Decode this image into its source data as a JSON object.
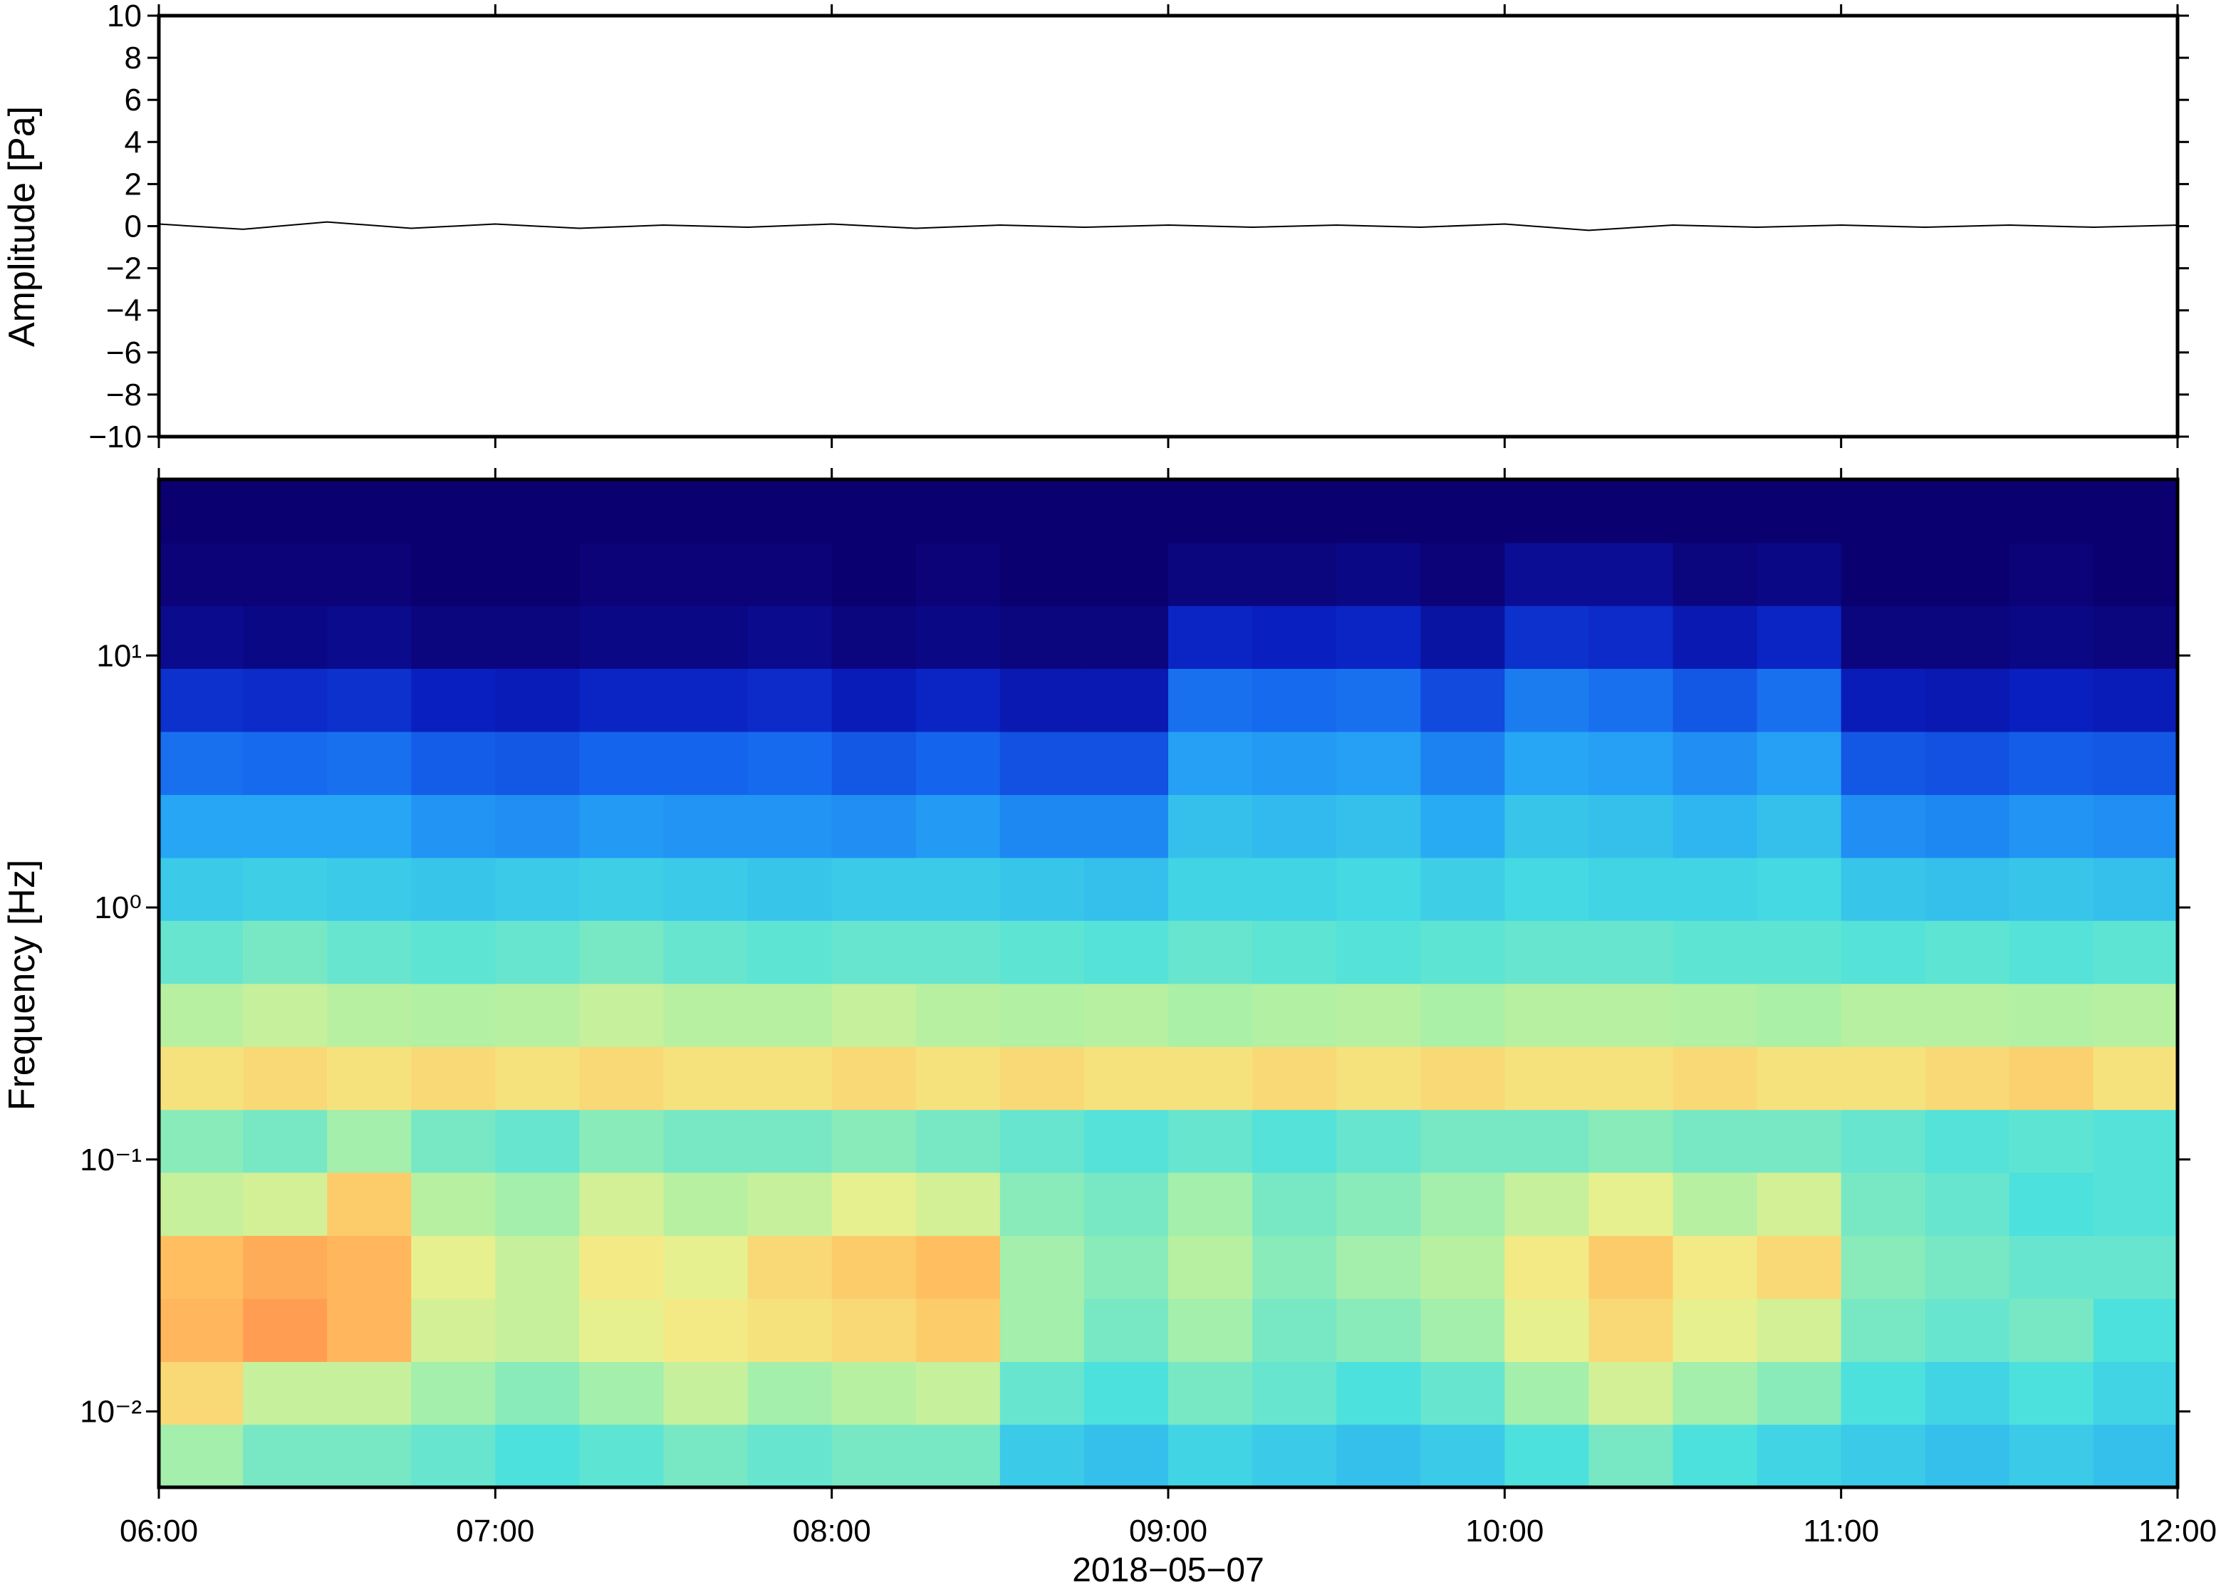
{
  "chart_data": [
    {
      "type": "line",
      "ylabel": "Amplitude [Pa]",
      "color": "#000000",
      "xlim": [
        6,
        12
      ],
      "xticks": [
        6,
        7,
        8,
        9,
        10,
        11,
        12
      ],
      "ylim": [
        -10,
        10
      ],
      "yticks": [
        {
          "value": 10,
          "label": "10"
        },
        {
          "value": 8,
          "label": "8"
        },
        {
          "value": 6,
          "label": "6"
        },
        {
          "value": 4,
          "label": "4"
        },
        {
          "value": 2,
          "label": "2"
        },
        {
          "value": 0,
          "label": "0"
        },
        {
          "value": -2,
          "label": "−2"
        },
        {
          "value": -4,
          "label": "−4"
        },
        {
          "value": -6,
          "label": "−6"
        },
        {
          "value": -8,
          "label": "−8"
        },
        {
          "value": -10,
          "label": "−10"
        }
      ],
      "x": [
        6,
        6.25,
        6.5,
        6.75,
        7,
        7.25,
        7.5,
        7.75,
        8,
        8.25,
        8.5,
        8.75,
        9,
        9.25,
        9.5,
        9.75,
        10,
        10.25,
        10.5,
        10.75,
        11,
        11.25,
        11.5,
        11.75,
        12
      ],
      "values": [
        0.1,
        -0.15,
        0.2,
        -0.1,
        0.1,
        -0.1,
        0.05,
        -0.05,
        0.1,
        -0.1,
        0.05,
        -0.05,
        0.05,
        -0.05,
        0.05,
        -0.05,
        0.1,
        -0.2,
        0.05,
        -0.05,
        0.05,
        -0.05,
        0.05,
        -0.05,
        0.05
      ]
    },
    {
      "type": "heatmap",
      "ylabel": "Frequency [Hz]",
      "xlabel": "2018−05−07",
      "log_y": true,
      "xlim": [
        6,
        12
      ],
      "xticks": [
        {
          "value": 6,
          "label": "06:00"
        },
        {
          "value": 7,
          "label": "07:00"
        },
        {
          "value": 8,
          "label": "08:00"
        },
        {
          "value": 9,
          "label": "09:00"
        },
        {
          "value": 10,
          "label": "10:00"
        },
        {
          "value": 11,
          "label": "11:00"
        },
        {
          "value": 12,
          "label": "12:00"
        }
      ],
      "ylim": [
        0.005,
        50
      ],
      "yticks": [
        {
          "value": 0.01,
          "label": "10⁻²"
        },
        {
          "value": 0.1,
          "label": "10⁻¹"
        },
        {
          "value": 1,
          "label": "10⁰"
        },
        {
          "value": 10,
          "label": "10¹"
        }
      ],
      "zlim": [
        0,
        1
      ],
      "colormap": [
        "#0b0070",
        "#0a1fc0",
        "#1565ee",
        "#27a8f5",
        "#48e0e0",
        "#a8f0a8",
        "#f2f08a",
        "#ffc060",
        "#ff8c4a",
        "#f05040"
      ],
      "xbins": [
        6,
        6.25,
        6.5,
        6.75,
        7,
        7.25,
        7.5,
        7.75,
        8,
        8.25,
        8.5,
        8.75,
        9,
        9.25,
        9.5,
        9.75,
        10,
        10.25,
        10.5,
        10.75,
        11,
        11.25,
        11.5,
        11.75,
        12
      ],
      "ybins": [
        0.005,
        0.0089,
        0.0158,
        0.0281,
        0.05,
        0.089,
        0.158,
        0.281,
        0.5,
        0.89,
        1.58,
        2.81,
        5,
        8.9,
        15.8,
        28.1,
        50
      ],
      "z": [
        [
          0.55,
          0.5,
          0.5,
          0.48,
          0.45,
          0.47,
          0.5,
          0.48,
          0.5,
          0.5,
          0.4,
          0.38,
          0.42,
          0.4,
          0.38,
          0.4,
          0.45,
          0.5,
          0.45,
          0.42,
          0.4,
          0.38,
          0.4,
          0.38
        ],
        [
          0.72,
          0.6,
          0.6,
          0.55,
          0.52,
          0.55,
          0.6,
          0.55,
          0.58,
          0.6,
          0.48,
          0.45,
          0.5,
          0.48,
          0.45,
          0.48,
          0.55,
          0.62,
          0.55,
          0.52,
          0.45,
          0.42,
          0.45,
          0.42
        ],
        [
          0.8,
          0.85,
          0.8,
          0.62,
          0.6,
          0.65,
          0.68,
          0.7,
          0.72,
          0.75,
          0.55,
          0.5,
          0.55,
          0.5,
          0.52,
          0.55,
          0.65,
          0.72,
          0.65,
          0.62,
          0.5,
          0.48,
          0.5,
          0.45
        ],
        [
          0.78,
          0.82,
          0.8,
          0.65,
          0.6,
          0.68,
          0.65,
          0.72,
          0.75,
          0.78,
          0.55,
          0.52,
          0.58,
          0.52,
          0.55,
          0.58,
          0.68,
          0.75,
          0.68,
          0.72,
          0.52,
          0.5,
          0.48,
          0.48
        ],
        [
          0.6,
          0.62,
          0.75,
          0.58,
          0.55,
          0.62,
          0.58,
          0.6,
          0.65,
          0.62,
          0.52,
          0.5,
          0.55,
          0.5,
          0.52,
          0.55,
          0.6,
          0.65,
          0.58,
          0.62,
          0.5,
          0.48,
          0.45,
          0.46
        ],
        [
          0.52,
          0.5,
          0.55,
          0.5,
          0.48,
          0.52,
          0.5,
          0.5,
          0.52,
          0.5,
          0.48,
          0.46,
          0.48,
          0.46,
          0.48,
          0.5,
          0.5,
          0.52,
          0.5,
          0.5,
          0.48,
          0.46,
          0.47,
          0.46
        ],
        [
          0.7,
          0.72,
          0.7,
          0.72,
          0.7,
          0.72,
          0.7,
          0.7,
          0.72,
          0.7,
          0.72,
          0.7,
          0.7,
          0.72,
          0.7,
          0.72,
          0.7,
          0.7,
          0.72,
          0.7,
          0.7,
          0.72,
          0.74,
          0.7
        ],
        [
          0.58,
          0.6,
          0.58,
          0.57,
          0.58,
          0.6,
          0.58,
          0.58,
          0.6,
          0.58,
          0.57,
          0.58,
          0.56,
          0.57,
          0.58,
          0.56,
          0.58,
          0.58,
          0.57,
          0.56,
          0.58,
          0.58,
          0.57,
          0.58
        ],
        [
          0.48,
          0.5,
          0.48,
          0.47,
          0.48,
          0.5,
          0.48,
          0.47,
          0.48,
          0.48,
          0.47,
          0.46,
          0.48,
          0.47,
          0.46,
          0.47,
          0.48,
          0.48,
          0.47,
          0.47,
          0.46,
          0.47,
          0.46,
          0.47
        ],
        [
          0.4,
          0.41,
          0.4,
          0.39,
          0.4,
          0.41,
          0.4,
          0.39,
          0.4,
          0.4,
          0.39,
          0.38,
          0.42,
          0.42,
          0.43,
          0.41,
          0.43,
          0.42,
          0.42,
          0.43,
          0.39,
          0.38,
          0.39,
          0.38
        ],
        [
          0.33,
          0.33,
          0.33,
          0.3,
          0.29,
          0.31,
          0.3,
          0.3,
          0.29,
          0.31,
          0.28,
          0.28,
          0.38,
          0.37,
          0.38,
          0.34,
          0.39,
          0.38,
          0.36,
          0.38,
          0.29,
          0.28,
          0.3,
          0.29
        ],
        [
          0.24,
          0.23,
          0.24,
          0.21,
          0.2,
          0.22,
          0.22,
          0.23,
          0.2,
          0.22,
          0.19,
          0.19,
          0.32,
          0.31,
          0.32,
          0.27,
          0.33,
          0.32,
          0.29,
          0.32,
          0.2,
          0.19,
          0.21,
          0.2
        ],
        [
          0.14,
          0.13,
          0.14,
          0.11,
          0.1,
          0.12,
          0.12,
          0.13,
          0.1,
          0.12,
          0.09,
          0.09,
          0.24,
          0.23,
          0.24,
          0.18,
          0.26,
          0.24,
          0.2,
          0.24,
          0.1,
          0.09,
          0.11,
          0.1
        ],
        [
          0.04,
          0.03,
          0.04,
          0.02,
          0.02,
          0.03,
          0.03,
          0.04,
          0.02,
          0.03,
          0.02,
          0.02,
          0.12,
          0.11,
          0.12,
          0.07,
          0.14,
          0.13,
          0.09,
          0.12,
          0.02,
          0.02,
          0.03,
          0.02
        ],
        [
          0.01,
          0.01,
          0.01,
          0.0,
          0.0,
          0.01,
          0.01,
          0.01,
          0.0,
          0.01,
          0.0,
          0.0,
          0.02,
          0.02,
          0.03,
          0.01,
          0.05,
          0.05,
          0.02,
          0.03,
          0.0,
          0.0,
          0.01,
          0.0
        ],
        [
          0,
          0,
          0,
          0,
          0,
          0,
          0,
          0,
          0,
          0,
          0,
          0,
          0,
          0,
          0,
          0,
          0,
          0,
          0,
          0,
          0,
          0,
          0,
          0
        ]
      ]
    }
  ]
}
